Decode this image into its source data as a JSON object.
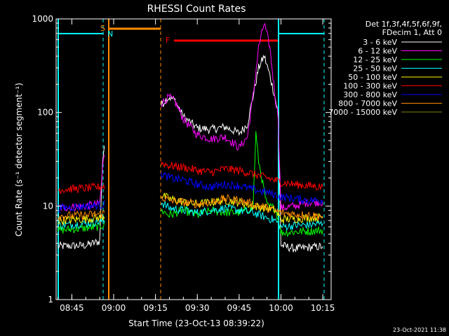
{
  "chart_data": {
    "type": "line",
    "title": "RHESSI Count Rates",
    "xlabel": "Start Time (23-Oct-13 08:39:22)",
    "ylabel": "Count Rate (s⁻¹ detector segment⁻¹)",
    "ylog": true,
    "ylim": [
      1,
      1000
    ],
    "xlim": [
      "08:39:22",
      "10:18:00"
    ],
    "xticks": [
      "08:45",
      "09:00",
      "09:15",
      "09:30",
      "09:45",
      "10:00",
      "10:15"
    ],
    "yticks": [
      "1",
      "10",
      "100",
      "1000"
    ],
    "legend_header": [
      "Det 1f,3f,4f,5f,6f,9f,",
      "FDecim 1, Att 0"
    ],
    "legend_position": "right",
    "markers": {
      "saa_label": "S",
      "night_label": "N",
      "flare_label": "F"
    },
    "series": [
      {
        "name": "3 - 6 keV",
        "color": "#ffffff",
        "x": [
          "08:40",
          "08:50",
          "08:55",
          "08:56",
          "08:57",
          "09:17",
          "09:19",
          "09:20",
          "09:22",
          "09:25",
          "09:30",
          "09:35",
          "09:40",
          "09:45",
          "09:48",
          "09:50",
          "09:52",
          "09:54",
          "09:56",
          "09:58",
          "09:59",
          "10:00",
          "10:05",
          "10:10",
          "10:15"
        ],
        "y": [
          3.7,
          3.8,
          4.2,
          30,
          55,
          120,
          140,
          145,
          135,
          90,
          68,
          66,
          70,
          60,
          75,
          150,
          300,
          400,
          250,
          140,
          95,
          3.8,
          3.5,
          3.6,
          3.7
        ]
      },
      {
        "name": "6 - 12 keV",
        "color": "#ff00ff",
        "x": [
          "08:40",
          "08:50",
          "08:55",
          "08:56",
          "08:57",
          "09:17",
          "09:19",
          "09:20",
          "09:22",
          "09:25",
          "09:30",
          "09:35",
          "09:40",
          "09:45",
          "09:48",
          "09:50",
          "09:52",
          "09:54",
          "09:56",
          "09:58",
          "09:59",
          "10:00",
          "10:05",
          "10:10",
          "10:15"
        ],
        "y": [
          9.5,
          10,
          10.5,
          25,
          45,
          125,
          140,
          145,
          130,
          85,
          58,
          52,
          55,
          42,
          55,
          150,
          500,
          900,
          500,
          140,
          90,
          9.5,
          10,
          11,
          11
        ]
      },
      {
        "name": "12 - 25 keV",
        "color": "#00ff00",
        "x": [
          "08:40",
          "08:50",
          "08:55",
          "08:57",
          "09:17",
          "09:20",
          "09:25",
          "09:30",
          "09:35",
          "09:40",
          "09:45",
          "09:48",
          "09:50",
          "09:51",
          "09:52",
          "09:55",
          "09:58",
          "10:00",
          "10:05",
          "10:10",
          "10:15"
        ],
        "y": [
          5.5,
          5.8,
          6,
          6.5,
          9,
          8,
          9,
          8,
          9,
          8.5,
          8.5,
          9,
          9.5,
          60,
          30,
          10,
          9.5,
          5.2,
          5.3,
          5.4,
          5.5
        ]
      },
      {
        "name": "25 - 50 keV",
        "color": "#00ffff",
        "x": [
          "08:40",
          "08:50",
          "08:55",
          "08:57",
          "09:17",
          "09:20",
          "09:25",
          "09:30",
          "09:35",
          "09:40",
          "09:45",
          "09:50",
          "09:55",
          "09:58",
          "10:00",
          "10:05",
          "10:10",
          "10:15"
        ],
        "y": [
          6.2,
          6.5,
          6.8,
          7,
          11,
          9.5,
          9,
          8.5,
          9,
          9.5,
          9,
          8.5,
          7.5,
          7,
          6,
          6.2,
          6.3,
          6.5
        ]
      },
      {
        "name": "50 - 100 keV",
        "color": "#ffff00",
        "x": [
          "08:40",
          "08:50",
          "08:55",
          "08:57",
          "09:17",
          "09:20",
          "09:25",
          "09:30",
          "09:35",
          "09:40",
          "09:45",
          "09:50",
          "09:55",
          "09:58",
          "10:00",
          "10:05",
          "10:10",
          "10:15"
        ],
        "y": [
          7,
          7.3,
          7.5,
          7.8,
          13,
          12,
          11,
          10.5,
          11,
          11.5,
          11,
          10,
          9.5,
          9,
          7.2,
          7.3,
          7.5,
          7.6
        ]
      },
      {
        "name": "100 - 300 keV",
        "color": "#ff0000",
        "x": [
          "08:40",
          "08:50",
          "08:55",
          "08:57",
          "09:17",
          "09:20",
          "09:25",
          "09:30",
          "09:35",
          "09:40",
          "09:45",
          "09:50",
          "09:55",
          "10:00",
          "10:05",
          "10:10",
          "10:15"
        ],
        "y": [
          15,
          15.5,
          16,
          16.5,
          29,
          27,
          26,
          24,
          23,
          25,
          24,
          22,
          20,
          18,
          17,
          16.5,
          16
        ]
      },
      {
        "name": "300 - 800 keV",
        "color": "#0000ff",
        "x": [
          "08:40",
          "08:50",
          "08:55",
          "08:57",
          "09:17",
          "09:20",
          "09:25",
          "09:30",
          "09:35",
          "09:40",
          "09:45",
          "09:50",
          "09:55",
          "10:00",
          "10:05",
          "10:10",
          "10:15"
        ],
        "y": [
          9.5,
          10,
          10.2,
          10.5,
          22,
          20,
          19,
          17,
          16,
          17,
          16.5,
          15,
          14,
          12.5,
          12,
          11.5,
          11.5
        ]
      },
      {
        "name": "800 - 7000 keV",
        "color": "#ff8c00",
        "x": [
          "08:40",
          "08:50",
          "08:55",
          "08:57",
          "09:17",
          "09:20",
          "09:25",
          "09:30",
          "09:35",
          "09:40",
          "09:45",
          "09:50",
          "09:55",
          "10:00",
          "10:05",
          "10:10",
          "10:15"
        ],
        "y": [
          7.8,
          8,
          8.2,
          8.5,
          12.5,
          11.5,
          11,
          10.5,
          11,
          12,
          11.5,
          10.5,
          9.5,
          8.5,
          8.2,
          8,
          7.8
        ]
      },
      {
        "name": "7000 - 15000 keV",
        "color": "#808000",
        "x": [],
        "y": []
      }
    ]
  },
  "timestamp": "23-Oct-2021 11:38"
}
